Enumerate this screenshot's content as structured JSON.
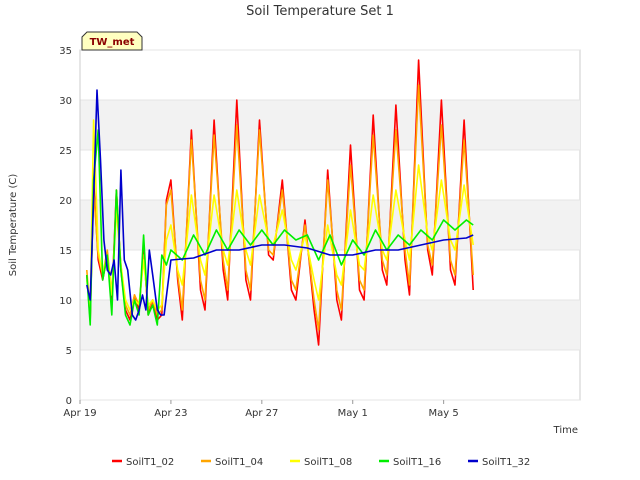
{
  "chart_data": {
    "type": "line",
    "title": "Soil Temperature Set 1",
    "xlabel": "Time",
    "ylabel": "Soil Temperature (C)",
    "badge": "TW_met",
    "xlim": [
      0,
      22
    ],
    "ylim": [
      0,
      35
    ],
    "yticks": [
      0,
      5,
      10,
      15,
      20,
      25,
      30,
      35
    ],
    "xticks": [
      {
        "label": "Apr 19",
        "day": 0
      },
      {
        "label": "Apr 23",
        "day": 4
      },
      {
        "label": "Apr 27",
        "day": 8
      },
      {
        "label": "May 1",
        "day": 12
      },
      {
        "label": "May 5",
        "day": 16
      }
    ],
    "grid": true,
    "legend_position": "bottom",
    "colors": {
      "SoilT1_02": "#ff0000",
      "SoilT1_04": "#ffa500",
      "SoilT1_08": "#ffff00",
      "SoilT1_16": "#00ee00",
      "SoilT1_32": "#0000cc"
    },
    "series": [
      {
        "name": "SoilT1_02",
        "x": [
          0.3,
          0.45,
          0.6,
          0.8,
          1.0,
          1.2,
          1.4,
          1.6,
          1.8,
          2.0,
          2.2,
          2.4,
          2.6,
          2.8,
          3.0,
          3.2,
          3.4,
          3.6,
          3.8,
          4.0,
          4.3,
          4.5,
          4.9,
          5.3,
          5.5,
          5.9,
          6.3,
          6.5,
          6.9,
          7.3,
          7.5,
          7.9,
          8.3,
          8.5,
          8.9,
          9.3,
          9.5,
          9.9,
          10.3,
          10.5,
          10.9,
          11.3,
          11.5,
          11.9,
          12.3,
          12.5,
          12.9,
          13.3,
          13.5,
          13.9,
          14.3,
          14.5,
          14.9,
          15.3,
          15.5,
          15.9,
          16.3,
          16.5,
          16.9,
          17.3
        ],
        "y": [
          12.5,
          8.0,
          22.0,
          14.0,
          12.0,
          14.5,
          10.0,
          21.0,
          13.0,
          9.0,
          8.0,
          10.5,
          9.0,
          15.0,
          8.5,
          10.0,
          8.0,
          8.5,
          20.0,
          22.0,
          12.0,
          8.0,
          27.0,
          11.0,
          9.0,
          28.0,
          13.0,
          10.0,
          30.0,
          12.0,
          10.0,
          28.0,
          14.5,
          14.0,
          22.0,
          11.0,
          10.0,
          18.0,
          9.0,
          5.5,
          23.0,
          10.0,
          8.0,
          25.5,
          11.0,
          10.0,
          28.5,
          13.0,
          11.5,
          29.5,
          14.0,
          10.5,
          34.0,
          15.0,
          12.5,
          30.0,
          13.0,
          11.5,
          28.0,
          11.0
        ]
      },
      {
        "name": "SoilT1_04",
        "x": [
          0.3,
          0.45,
          0.6,
          0.8,
          1.0,
          1.2,
          1.4,
          1.6,
          1.8,
          2.0,
          2.2,
          2.4,
          2.6,
          2.8,
          3.0,
          3.2,
          3.4,
          3.6,
          3.8,
          4.0,
          4.3,
          4.5,
          4.9,
          5.3,
          5.5,
          5.9,
          6.3,
          6.5,
          6.9,
          7.3,
          7.5,
          7.9,
          8.3,
          8.5,
          8.9,
          9.3,
          9.5,
          9.9,
          10.3,
          10.5,
          10.9,
          11.3,
          11.5,
          11.9,
          12.3,
          12.5,
          12.9,
          13.3,
          13.5,
          13.9,
          14.3,
          14.5,
          14.9,
          15.3,
          15.5,
          15.9,
          16.3,
          16.5,
          16.9,
          17.3
        ],
        "y": [
          13.0,
          8.5,
          21.0,
          14.5,
          12.5,
          15.0,
          10.5,
          20.0,
          13.5,
          9.5,
          8.5,
          10.5,
          9.5,
          14.5,
          9.0,
          10.0,
          8.5,
          9.0,
          19.5,
          21.0,
          12.5,
          9.0,
          26.0,
          12.0,
          10.0,
          26.5,
          14.0,
          11.0,
          27.5,
          13.0,
          11.0,
          27.0,
          15.0,
          14.5,
          21.0,
          12.0,
          11.0,
          17.5,
          10.0,
          7.0,
          22.0,
          11.0,
          9.0,
          23.5,
          12.0,
          11.0,
          26.5,
          14.0,
          12.5,
          27.0,
          15.0,
          11.5,
          31.5,
          15.5,
          13.5,
          27.5,
          14.0,
          12.5,
          26.0,
          12.5
        ]
      },
      {
        "name": "SoilT1_08",
        "x": [
          0.3,
          0.45,
          0.6,
          0.8,
          1.0,
          1.2,
          1.4,
          1.6,
          1.8,
          2.0,
          2.2,
          2.4,
          2.6,
          2.8,
          3.0,
          3.2,
          3.4,
          3.6,
          3.8,
          4.0,
          4.3,
          4.5,
          4.9,
          5.3,
          5.5,
          5.9,
          6.3,
          6.5,
          6.9,
          7.3,
          7.5,
          7.9,
          8.3,
          8.5,
          8.9,
          9.3,
          9.5,
          9.9,
          10.3,
          10.5,
          10.9,
          11.3,
          11.5,
          11.9,
          12.3,
          12.5,
          12.9,
          13.3,
          13.5,
          13.9,
          14.3,
          14.5,
          14.9,
          15.3,
          15.5,
          15.9,
          16.3,
          16.5,
          16.9,
          17.3
        ],
        "y": [
          12.0,
          9.0,
          28.0,
          15.0,
          12.5,
          14.5,
          10.5,
          19.0,
          13.5,
          10.0,
          9.0,
          10.0,
          9.5,
          14.0,
          9.5,
          10.0,
          9.0,
          9.5,
          16.0,
          17.5,
          13.0,
          11.5,
          20.5,
          14.0,
          12.5,
          20.5,
          15.0,
          13.5,
          21.0,
          15.0,
          13.5,
          20.5,
          16.0,
          15.5,
          19.0,
          14.0,
          13.0,
          16.5,
          12.0,
          10.0,
          17.5,
          12.5,
          11.5,
          19.0,
          13.5,
          13.0,
          20.5,
          15.0,
          14.0,
          21.0,
          16.0,
          14.0,
          23.5,
          16.5,
          15.0,
          22.0,
          16.0,
          15.0,
          21.5,
          15.5
        ]
      },
      {
        "name": "SoilT1_16",
        "x": [
          0.3,
          0.45,
          0.6,
          0.8,
          1.0,
          1.2,
          1.4,
          1.6,
          1.8,
          2.0,
          2.2,
          2.4,
          2.6,
          2.8,
          3.0,
          3.2,
          3.4,
          3.6,
          3.8,
          4.0,
          4.5,
          5.0,
          5.5,
          6.0,
          6.5,
          7.0,
          7.5,
          8.0,
          8.5,
          9.0,
          9.5,
          10.0,
          10.5,
          11.0,
          11.5,
          12.0,
          12.5,
          13.0,
          13.5,
          14.0,
          14.5,
          15.0,
          15.5,
          16.0,
          16.5,
          17.0,
          17.3
        ],
        "y": [
          12.5,
          7.5,
          22.0,
          27.0,
          12.0,
          14.5,
          8.5,
          21.0,
          13.0,
          8.5,
          7.5,
          10.0,
          8.5,
          16.5,
          8.5,
          9.5,
          7.5,
          14.5,
          13.5,
          15.0,
          14.0,
          16.5,
          14.5,
          17.0,
          15.0,
          17.0,
          15.5,
          17.0,
          15.5,
          17.0,
          16.0,
          16.5,
          14.0,
          16.5,
          13.5,
          16.0,
          14.5,
          17.0,
          15.0,
          16.5,
          15.5,
          17.0,
          16.0,
          18.0,
          17.0,
          18.0,
          17.5
        ]
      },
      {
        "name": "SoilT1_32",
        "x": [
          0.3,
          0.45,
          0.6,
          0.75,
          0.9,
          1.05,
          1.2,
          1.35,
          1.5,
          1.65,
          1.8,
          1.95,
          2.1,
          2.3,
          2.45,
          2.6,
          2.75,
          2.9,
          3.05,
          3.2,
          3.4,
          3.55,
          3.7,
          4.0,
          5.0,
          6.0,
          7.0,
          8.0,
          9.0,
          10.0,
          11.0,
          12.0,
          13.0,
          14.0,
          15.0,
          16.0,
          17.0,
          17.3
        ],
        "y": [
          11.5,
          10.0,
          20.0,
          31.0,
          24.0,
          16.0,
          13.0,
          12.5,
          14.0,
          10.0,
          23.0,
          14.0,
          13.0,
          8.5,
          8.0,
          9.0,
          10.5,
          9.0,
          15.0,
          12.5,
          9.0,
          8.5,
          8.5,
          14.0,
          14.2,
          15.0,
          15.0,
          15.5,
          15.5,
          15.2,
          14.5,
          14.5,
          15.0,
          15.0,
          15.5,
          16.0,
          16.2,
          16.5
        ]
      }
    ]
  }
}
